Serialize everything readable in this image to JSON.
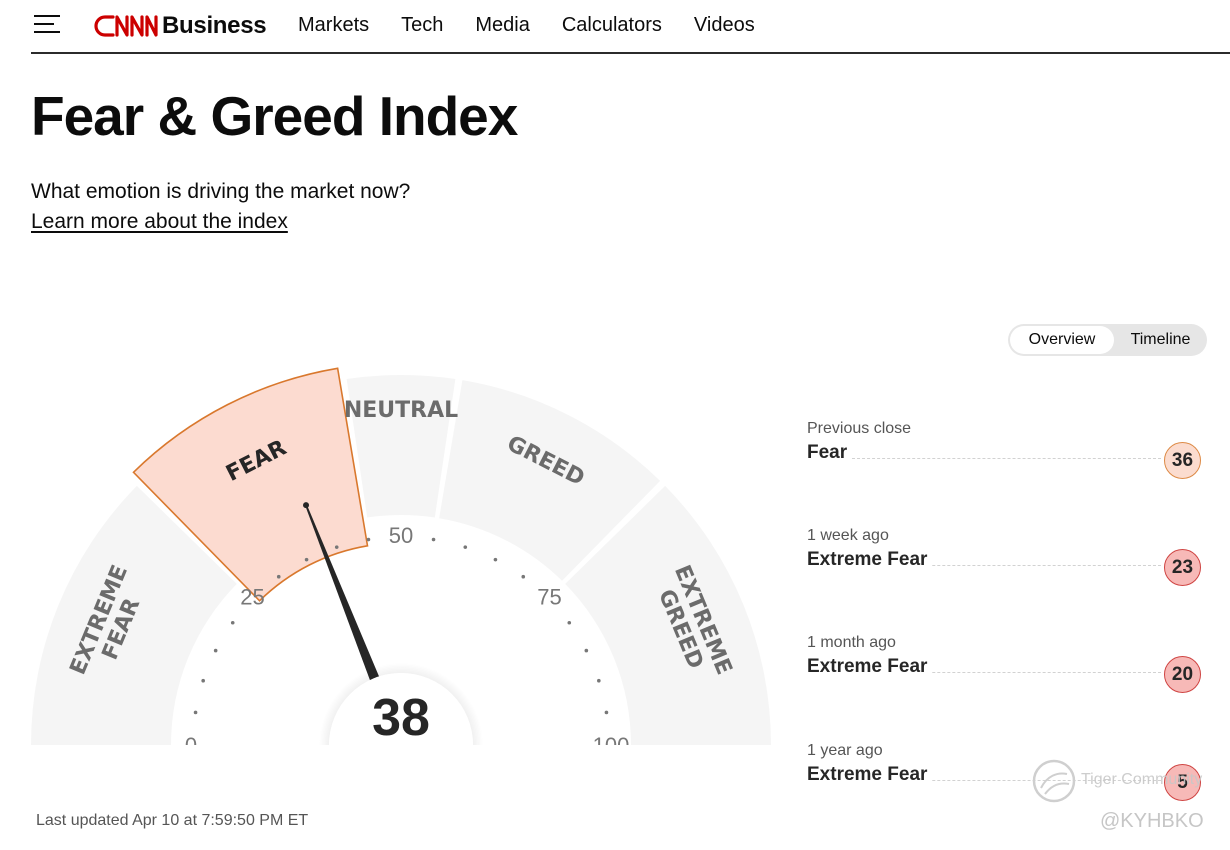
{
  "header": {
    "brand": {
      "logo": "CNN",
      "section": "Business",
      "brand_color": "#cc0000"
    },
    "nav": [
      "Markets",
      "Tech",
      "Media",
      "Calculators",
      "Videos"
    ]
  },
  "page": {
    "title": "Fear & Greed Index",
    "subtitle": "What emotion is driving the market now?",
    "learn_link": "Learn more about the index"
  },
  "toggle": {
    "options": [
      "Overview",
      "Timeline"
    ],
    "selected": "Overview"
  },
  "gauge": {
    "value": 38,
    "current_zone": "FEAR",
    "zones": [
      "EXTREME FEAR",
      "FEAR",
      "NEUTRAL",
      "GREED",
      "EXTREME GREED"
    ],
    "scale_labels": [
      "0",
      "25",
      "50",
      "75",
      "100"
    ],
    "colors": {
      "active_fill": "#fcdbd0",
      "active_stroke": "#d9782d",
      "zone_fill": "#f5f5f5",
      "needle": "#262626"
    }
  },
  "history": [
    {
      "when": "Previous close",
      "label": "Fear",
      "value": "36",
      "level": "fear"
    },
    {
      "when": "1 week ago",
      "label": "Extreme Fear",
      "value": "23",
      "level": "extreme-fear"
    },
    {
      "when": "1 month ago",
      "label": "Extreme Fear",
      "value": "20",
      "level": "extreme-fear"
    },
    {
      "when": "1 year ago",
      "label": "Extreme Fear",
      "value": "5",
      "level": "extreme-fear"
    }
  ],
  "last_updated": "Last updated Apr 10 at 7:59:50 PM ET",
  "watermark": {
    "community": "Tiger Community",
    "handle": "@KYHBKO"
  }
}
